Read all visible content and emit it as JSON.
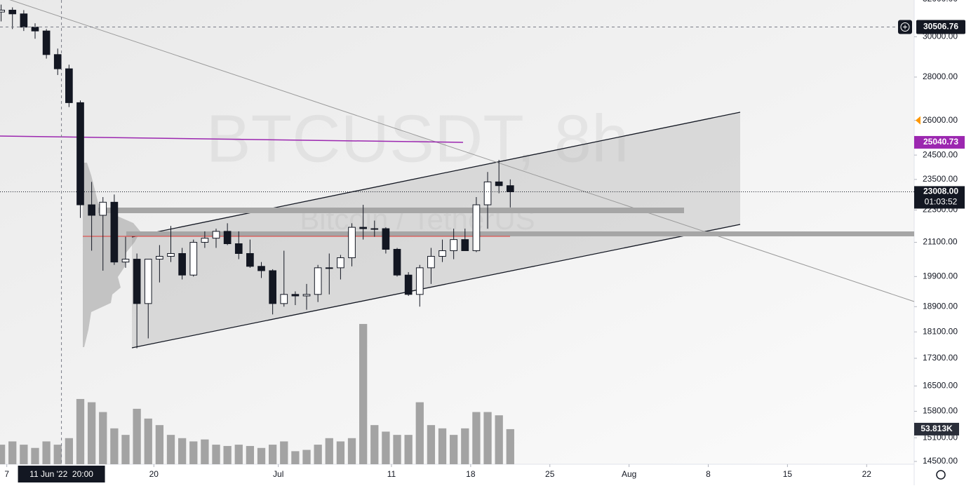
{
  "chart_data": {
    "type": "candlestick",
    "watermark": {
      "symbol": "BTCUSDT, 8h",
      "name": "Bitcoin / TetherUS"
    },
    "log_scale": true,
    "ylim": [
      14430,
      31950
    ],
    "yticks": [
      {
        "value": 32000,
        "label": "32000.00"
      },
      {
        "value": 30000,
        "label": "30000.00"
      },
      {
        "value": 28000,
        "label": "28000.00"
      },
      {
        "value": 26000,
        "label": "26000.00"
      },
      {
        "value": 24500,
        "label": "24500.00"
      },
      {
        "value": 23500,
        "label": "23500.00"
      },
      {
        "value": 22300,
        "label": "22300.00"
      },
      {
        "value": 21100,
        "label": "21100.00"
      },
      {
        "value": 19900,
        "label": "19900.00"
      },
      {
        "value": 18900,
        "label": "18900.00"
      },
      {
        "value": 18100,
        "label": "18100.00"
      },
      {
        "value": 17300,
        "label": "17300.00"
      },
      {
        "value": 16500,
        "label": "16500.00"
      },
      {
        "value": 15800,
        "label": "15800.00"
      },
      {
        "value": 15100,
        "label": "15100.00"
      },
      {
        "value": 14500,
        "label": "14500.00"
      }
    ],
    "xlim": [
      -0.6,
      80.2
    ],
    "xticks": [
      {
        "value": 0,
        "label": "7"
      },
      {
        "value": 13,
        "label": "20"
      },
      {
        "value": 24,
        "label": "Jul"
      },
      {
        "value": 34,
        "label": "11"
      },
      {
        "value": 41,
        "label": "18"
      },
      {
        "value": 48,
        "label": "25"
      },
      {
        "value": 55,
        "label": "Aug"
      },
      {
        "value": 62,
        "label": "8"
      },
      {
        "value": 69,
        "label": "15"
      },
      {
        "value": 76,
        "label": "22"
      }
    ],
    "x": [
      -1,
      0,
      1,
      2,
      3,
      4,
      5,
      6,
      7,
      8,
      9,
      10,
      11,
      12,
      13,
      14,
      15,
      16,
      17,
      18,
      19,
      20,
      21,
      22,
      23,
      24,
      25,
      26,
      27,
      28,
      29,
      30,
      31,
      32,
      33,
      34,
      35,
      36,
      37,
      38,
      39,
      40,
      41,
      42,
      43,
      44
    ],
    "open": [
      31300,
      31400,
      31200,
      30500,
      30300,
      29100,
      28400,
      26800,
      22500,
      22100,
      22600,
      20400,
      20500,
      19000,
      20500,
      20600,
      20700,
      19950,
      21100,
      21250,
      21500,
      21050,
      20700,
      20250,
      20100,
      19000,
      19300,
      19250,
      19300,
      20200,
      20200,
      20550,
      21650,
      21600,
      21600,
      20850,
      19950,
      19300,
      20200,
      20600,
      20800,
      21200,
      20800,
      22500,
      23400,
      23250
    ],
    "high": [
      31700,
      31550,
      31400,
      30700,
      30400,
      29400,
      28600,
      26900,
      23400,
      22800,
      22900,
      21300,
      20700,
      20500,
      21000,
      21700,
      20900,
      21200,
      21500,
      21600,
      21800,
      21500,
      21200,
      20400,
      20150,
      20800,
      19400,
      19650,
      20300,
      20700,
      20650,
      21800,
      22500,
      21900,
      21650,
      20900,
      20050,
      20300,
      20900,
      21200,
      21600,
      21600,
      22800,
      23800,
      24300,
      23500
    ],
    "low": [
      30800,
      30400,
      30300,
      29900,
      28900,
      28100,
      26600,
      22000,
      20800,
      20100,
      20300,
      20200,
      17600,
      17900,
      19700,
      20400,
      19800,
      19900,
      20900,
      20900,
      21000,
      20500,
      20200,
      19850,
      18650,
      18900,
      18950,
      18800,
      19050,
      19300,
      19800,
      20250,
      21200,
      21300,
      20700,
      19900,
      19250,
      18900,
      19650,
      20400,
      20500,
      20800,
      20750,
      21600,
      22950,
      22400
    ],
    "close": [
      31400,
      31200,
      30500,
      30300,
      29100,
      28400,
      26800,
      22500,
      22100,
      22600,
      20400,
      20500,
      19000,
      20500,
      20600,
      20700,
      19950,
      21100,
      21250,
      21500,
      21050,
      20700,
      20250,
      20100,
      19000,
      19300,
      19250,
      19300,
      20200,
      20200,
      20550,
      21650,
      21600,
      21600,
      20850,
      19950,
      19300,
      20200,
      20600,
      20800,
      21200,
      20800,
      22500,
      23400,
      23250,
      23008
    ],
    "volume": {
      "ylim": [
        0,
        230
      ],
      "values": [
        30,
        35,
        30,
        25,
        35,
        30,
        40,
        100,
        95,
        80,
        55,
        45,
        85,
        70,
        60,
        45,
        40,
        35,
        38,
        30,
        28,
        30,
        28,
        25,
        30,
        35,
        20,
        22,
        30,
        40,
        35,
        40,
        215,
        60,
        50,
        45,
        45,
        95,
        60,
        55,
        45,
        55,
        80,
        80,
        75,
        53.813
      ],
      "last_label": "53.813K"
    },
    "crosshair": {
      "x": 4.83,
      "label": "11 Jun '22  20:00",
      "price": 30506.76
    },
    "alert_price": 25040.73,
    "last_price": {
      "value": 23008,
      "label": "23008.00"
    },
    "countdown": "01:03:52"
  }
}
